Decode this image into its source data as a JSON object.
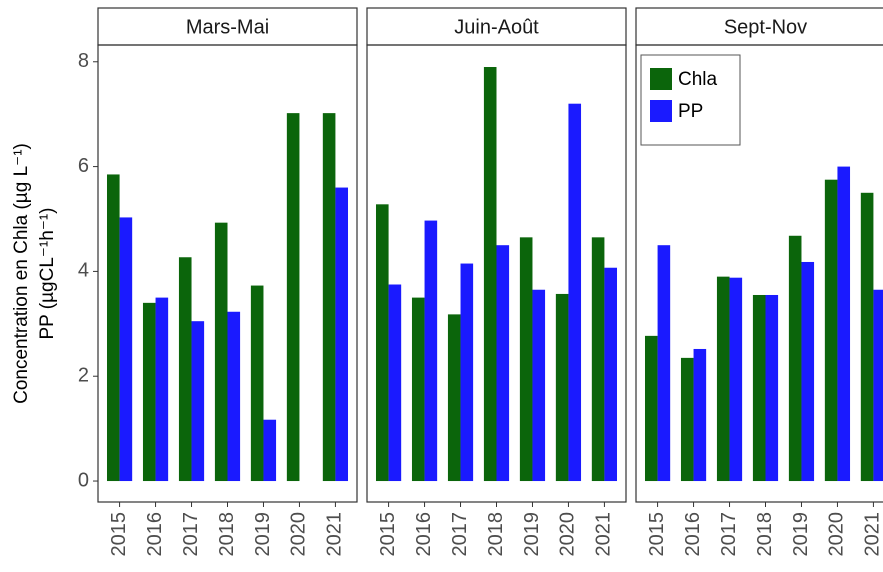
{
  "chart_data": [
    {
      "type": "bar",
      "title": "Mars-Mai",
      "ylabel": [
        "Concentration en Chla (µg L⁻¹)",
        "PP (µgCL⁻¹h⁻¹)"
      ],
      "categories": [
        "2015",
        "2016",
        "2017",
        "2018",
        "2019",
        "2020",
        "2021"
      ],
      "series": [
        {
          "name": "Chla",
          "color": "#0b650b",
          "values": [
            5.85,
            3.4,
            4.27,
            4.93,
            3.73,
            7.02,
            7.02
          ]
        },
        {
          "name": "PP",
          "color": "#1a1aff",
          "values": [
            5.03,
            3.5,
            3.05,
            3.23,
            1.17,
            null,
            5.6
          ]
        }
      ],
      "ylim": [
        -0.4,
        8.32
      ],
      "yticks": [
        0,
        2,
        4,
        6,
        8
      ],
      "legend": false
    },
    {
      "type": "bar",
      "title": "Juin-Août",
      "categories": [
        "2015",
        "2016",
        "2017",
        "2018",
        "2019",
        "2020",
        "2021"
      ],
      "series": [
        {
          "name": "Chla",
          "color": "#0b650b",
          "values": [
            5.28,
            3.5,
            3.18,
            7.9,
            4.65,
            3.57,
            4.65
          ]
        },
        {
          "name": "PP",
          "color": "#1a1aff",
          "values": [
            3.75,
            4.97,
            4.15,
            4.5,
            3.65,
            7.2,
            4.07
          ]
        }
      ],
      "ylim": [
        -0.4,
        8.32
      ],
      "legend": false
    },
    {
      "type": "bar",
      "title": "Sept-Nov",
      "categories": [
        "2015",
        "2016",
        "2017",
        "2018",
        "2019",
        "2020",
        "2021"
      ],
      "series": [
        {
          "name": "Chla",
          "color": "#0b650b",
          "values": [
            2.77,
            2.35,
            3.9,
            3.55,
            4.68,
            5.75,
            5.5
          ]
        },
        {
          "name": "PP",
          "color": "#1a1aff",
          "values": [
            4.5,
            2.52,
            3.88,
            3.55,
            4.18,
            6.0,
            3.65
          ]
        }
      ],
      "ylim": [
        -0.4,
        8.32
      ],
      "legend": "top-left"
    }
  ]
}
